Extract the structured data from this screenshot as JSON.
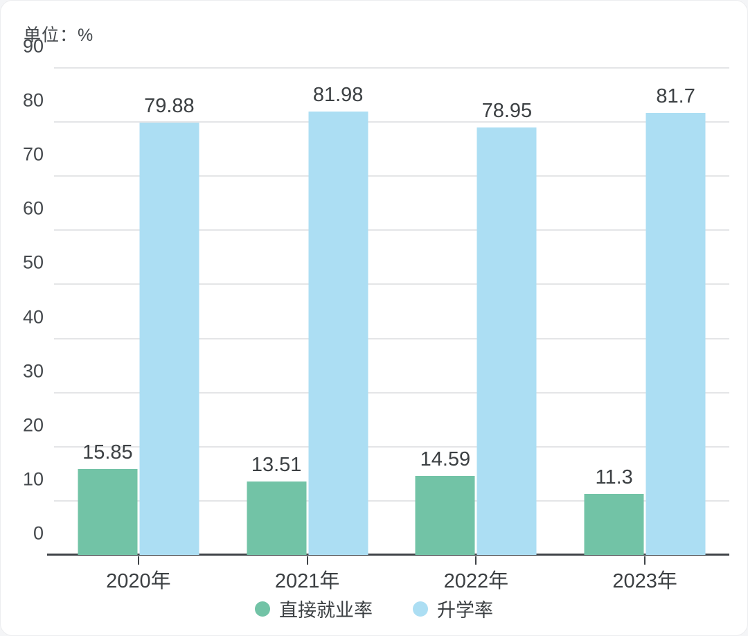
{
  "unit_label": "单位：%",
  "chart_data": {
    "type": "bar",
    "title": "单位：%",
    "categories": [
      "2020年",
      "2021年",
      "2022年",
      "2023年"
    ],
    "series": [
      {
        "name": "直接就业率",
        "color": "#72c3a6",
        "values": [
          15.85,
          13.51,
          14.59,
          11.3
        ]
      },
      {
        "name": "升学率",
        "color": "#acdef3",
        "values": [
          79.88,
          81.98,
          78.95,
          81.7
        ]
      }
    ],
    "value_labels": {
      "直接就业率": [
        "15.85",
        "13.51",
        "14.59",
        "11.3"
      ],
      "升学率": [
        "79.88",
        "81.98",
        "78.95",
        "81.7"
      ]
    },
    "ylim": [
      0,
      90
    ],
    "ytick_step": 10,
    "yticks": [
      "0",
      "10",
      "20",
      "30",
      "40",
      "50",
      "60",
      "70",
      "80",
      "90"
    ],
    "grid": true,
    "legend_position": "bottom",
    "colors": {
      "grid": "#e4e5e7",
      "axis": "#3f4347",
      "text": "#3c4043"
    }
  }
}
